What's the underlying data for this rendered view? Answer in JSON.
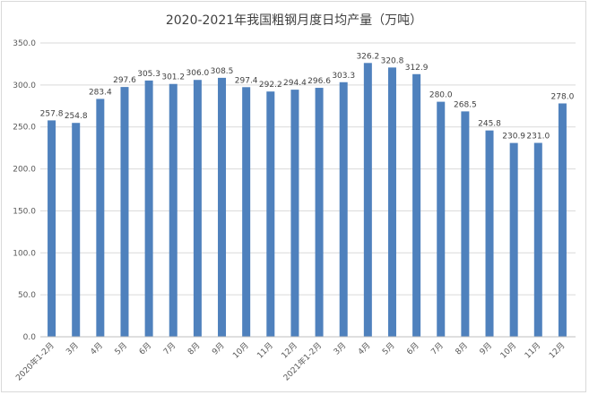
{
  "chart_data": {
    "type": "bar",
    "title": "2020-2021年我国粗钢月度日均产量（万吨）",
    "categories": [
      "2020年1-2月",
      "3月",
      "4月",
      "5月",
      "6月",
      "7月",
      "8月",
      "9月",
      "10月",
      "11月",
      "12月",
      "2021年1-2月",
      "3月",
      "4月",
      "5月",
      "6月",
      "7月",
      "8月",
      "9月",
      "10月",
      "11月",
      "12月"
    ],
    "values": [
      257.8,
      254.8,
      283.4,
      297.6,
      305.3,
      301.2,
      306.0,
      308.5,
      297.4,
      292.2,
      294.4,
      296.6,
      303.3,
      326.2,
      320.8,
      312.9,
      280.0,
      268.5,
      245.8,
      230.9,
      231.0,
      278.0
    ],
    "value_labels": [
      "257.8",
      "254.8",
      "283.4",
      "297.6",
      "305.3",
      "301.2",
      "306.0",
      "308.5",
      "297.4",
      "292.2",
      "294.4",
      "296.6",
      "303.3",
      "326.2",
      "320.8",
      "312.9",
      "280.0",
      "268.5",
      "245.8",
      "230.9",
      "231.0",
      "278.0"
    ],
    "ylim": [
      0,
      350
    ],
    "yticks": [
      "0.0",
      "50.0",
      "100.0",
      "150.0",
      "200.0",
      "250.0",
      "300.0",
      "350.0"
    ],
    "ytick_values": [
      0,
      50,
      100,
      150,
      200,
      250,
      300,
      350
    ],
    "grid": true,
    "bar_color": "#4f81bd",
    "grid_color": "#d9d9d9"
  }
}
